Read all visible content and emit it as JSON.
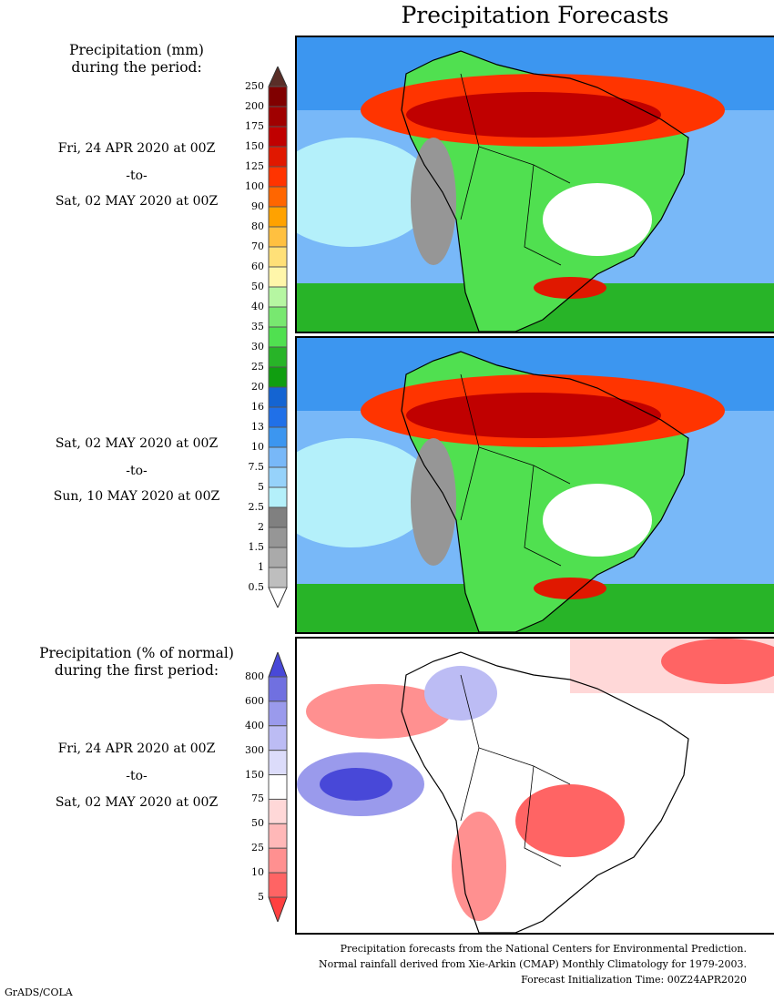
{
  "title": "Precipitation Forecasts",
  "legend_precip": {
    "heading": [
      "Precipitation (mm)",
      "during the period:"
    ],
    "labels": [
      "250",
      "200",
      "175",
      "150",
      "125",
      "100",
      "90",
      "80",
      "70",
      "60",
      "50",
      "40",
      "35",
      "30",
      "25",
      "20",
      "16",
      "13",
      "10",
      "7.5",
      "5",
      "2.5",
      "2",
      "1.5",
      "1",
      "0.5"
    ],
    "colors": [
      "#800000",
      "#a00000",
      "#c00000",
      "#e01800",
      "#ff3400",
      "#ff6600",
      "#ffa200",
      "#ffc040",
      "#ffe078",
      "#fff6aa",
      "#b6f6a2",
      "#78e870",
      "#50e050",
      "#28b428",
      "#109e10",
      "#1464d2",
      "#2070e8",
      "#3c96f0",
      "#78b8f8",
      "#96d2fa",
      "#b4f0fa",
      "#808080",
      "#969696",
      "#aaaaaa",
      "#bebebe"
    ],
    "top_arrow_color": "#5a2e28",
    "bottom_arrow_color": "#ffffff"
  },
  "period1": {
    "start": "Fri, 24 APR 2020 at 00Z",
    "sep": "-to-",
    "end": "Sat, 02 MAY 2020 at 00Z"
  },
  "period2": {
    "start": "Sat, 02 MAY 2020 at 00Z",
    "sep": "-to-",
    "end": "Sun, 10 MAY 2020 at 00Z"
  },
  "legend_pct": {
    "heading": [
      "Precipitation (% of normal)",
      "during the first period:"
    ],
    "labels": [
      "800",
      "600",
      "400",
      "300",
      "150",
      "75",
      "50",
      "25",
      "10",
      "5"
    ],
    "colors": [
      "#7070e0",
      "#9a9aec",
      "#bcbcf4",
      "#dcdcfa",
      "#ffffff",
      "#ffd8d8",
      "#ffb8b8",
      "#ff9090",
      "#ff6464"
    ],
    "top_arrow_color": "#4848d8",
    "bottom_arrow_color": "#ff4040"
  },
  "period3": {
    "start": "Fri, 24 APR 2020 at 00Z",
    "sep": "-to-",
    "end": "Sat, 02 MAY 2020 at 00Z"
  },
  "footer": [
    "Precipitation forecasts from the National Centers for Environmental Prediction.",
    "Normal rainfall derived from Xie-Arkin (CMAP) Monthly Climatology for 1979-2003.",
    "Forecast Initialization Time: 00Z24APR2020"
  ],
  "credit": "GrADS/COLA"
}
